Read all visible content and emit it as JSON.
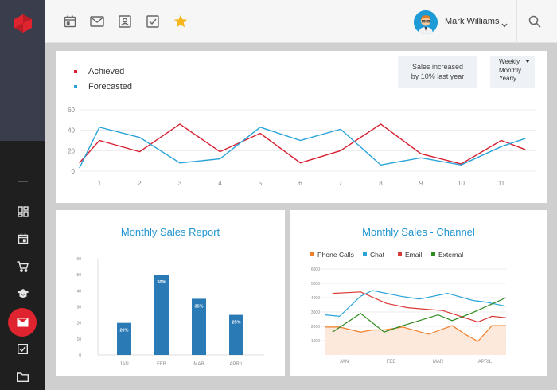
{
  "user": {
    "name": "Mark Williams"
  },
  "top_icons": [
    "calendar-icon",
    "mail-icon",
    "contact-card-icon",
    "checkbox-icon",
    "star-icon"
  ],
  "sidebar": {
    "items": [
      "dashboard-icon",
      "calendar-icon",
      "cart-icon",
      "graduation-cap-icon",
      "mail-icon",
      "checkbox-icon",
      "folder-icon"
    ],
    "active": "mail-icon"
  },
  "colors": {
    "accent_red": "#e0242f",
    "chart_blue": "#1f95cf",
    "bar_blue": "#2a7ab5",
    "sidebar_dark": "#1f1f1f",
    "sidebar_top": "#3a3e4c"
  },
  "top_panel": {
    "legend": [
      {
        "label": "Achieved",
        "color": "#d61f2f"
      },
      {
        "label": "Forecasted",
        "color": "#2aa4d8"
      }
    ],
    "info_text_1": "Sales increased",
    "info_text_2": "by 10% last year",
    "period_options": [
      "Weekly",
      "Monthly",
      "Yearly"
    ]
  },
  "left_panel": {
    "title": "Monthly Sales Report"
  },
  "right_panel": {
    "title": "Monthly Sales - Channel",
    "legend": [
      {
        "label": "Phone Calls",
        "color": "#f07f2b"
      },
      {
        "label": "Chat",
        "color": "#2aa4d8"
      },
      {
        "label": "Email",
        "color": "#d93a36"
      },
      {
        "label": "External",
        "color": "#2f8a1f"
      }
    ]
  },
  "chart_data": [
    {
      "type": "line",
      "x": [
        1,
        2,
        3,
        4,
        5,
        6,
        7,
        8,
        9,
        10,
        11
      ],
      "x_tick_labels": [
        "1",
        "2",
        "3",
        "4",
        "5",
        "6",
        "7",
        "8",
        "9",
        "10",
        "11"
      ],
      "y_tick_labels": [
        "0",
        "20",
        "40",
        "60"
      ],
      "ylim": [
        0,
        60
      ],
      "grid": true,
      "legend": "top-left",
      "series": [
        {
          "name": "Achieved",
          "color": "#d61f2f",
          "x": [
            0.5,
            1,
            2,
            3,
            4,
            5,
            6,
            7,
            8,
            9,
            10,
            11,
            11.6
          ],
          "values": [
            8,
            30,
            19,
            46,
            19,
            37,
            8,
            20,
            46,
            17,
            7,
            30,
            21
          ]
        },
        {
          "name": "Forecasted",
          "color": "#2aa4d8",
          "x": [
            0.5,
            1,
            2,
            3,
            4,
            5,
            6,
            7,
            8,
            9,
            10,
            11,
            11.6
          ],
          "values": [
            3,
            43,
            33,
            8,
            12,
            43,
            30,
            41,
            6,
            13,
            6,
            24,
            32
          ]
        }
      ]
    },
    {
      "type": "bar",
      "title": "Monthly Sales Report",
      "categories": [
        "JAN",
        "FEB",
        "MAR",
        "APRIL"
      ],
      "values": [
        20,
        50,
        35,
        25
      ],
      "data_labels": [
        "20%",
        "50%",
        "35%",
        "25%"
      ],
      "y_tick_labels": [
        "0",
        "10",
        "20",
        "30",
        "40",
        "50",
        "60"
      ],
      "ylim": [
        0,
        60
      ],
      "color": "#2a7ab5"
    },
    {
      "type": "line",
      "title": "Monthly Sales - Channel",
      "categories": [
        "JAN",
        "FEB",
        "MAR",
        "APRIL"
      ],
      "y_tick_labels": [
        "1000",
        "2000",
        "3000",
        "4000",
        "5000",
        "6000"
      ],
      "ylim": [
        0,
        6000
      ],
      "grid": true,
      "legend": "top",
      "series": [
        {
          "name": "Phone Calls",
          "color": "#f07f2b",
          "x": [
            0,
            0.3,
            0.75,
            1,
            1.25,
            1.65,
            2.2,
            2.7,
            3,
            3.25,
            3.55,
            3.85
          ],
          "values": [
            1950,
            1950,
            1600,
            1750,
            1750,
            1950,
            1450,
            2050,
            1400,
            950,
            2050,
            2050
          ]
        },
        {
          "name": "Chat",
          "color": "#2aa4d8",
          "x": [
            0,
            0.3,
            0.75,
            1,
            1.6,
            2.0,
            2.6,
            3.15,
            3.4,
            3.85
          ],
          "values": [
            2800,
            2700,
            4100,
            4500,
            4100,
            3900,
            4300,
            3800,
            3700,
            3400
          ]
        },
        {
          "name": "Email",
          "color": "#d93a36",
          "x": [
            0.15,
            0.75,
            1.3,
            1.75,
            2.1,
            2.5,
            3.25,
            3.55,
            3.85
          ],
          "values": [
            4300,
            4400,
            3600,
            3300,
            3200,
            3100,
            2300,
            2700,
            2600
          ]
        },
        {
          "name": "External",
          "color": "#2f8a1f",
          "x": [
            0.15,
            0.75,
            1.25,
            1.6,
            2.05,
            2.4,
            2.7,
            3.1,
            3.85
          ],
          "values": [
            1600,
            2900,
            1600,
            2000,
            2450,
            2800,
            2400,
            2900,
            4000
          ]
        }
      ]
    }
  ]
}
